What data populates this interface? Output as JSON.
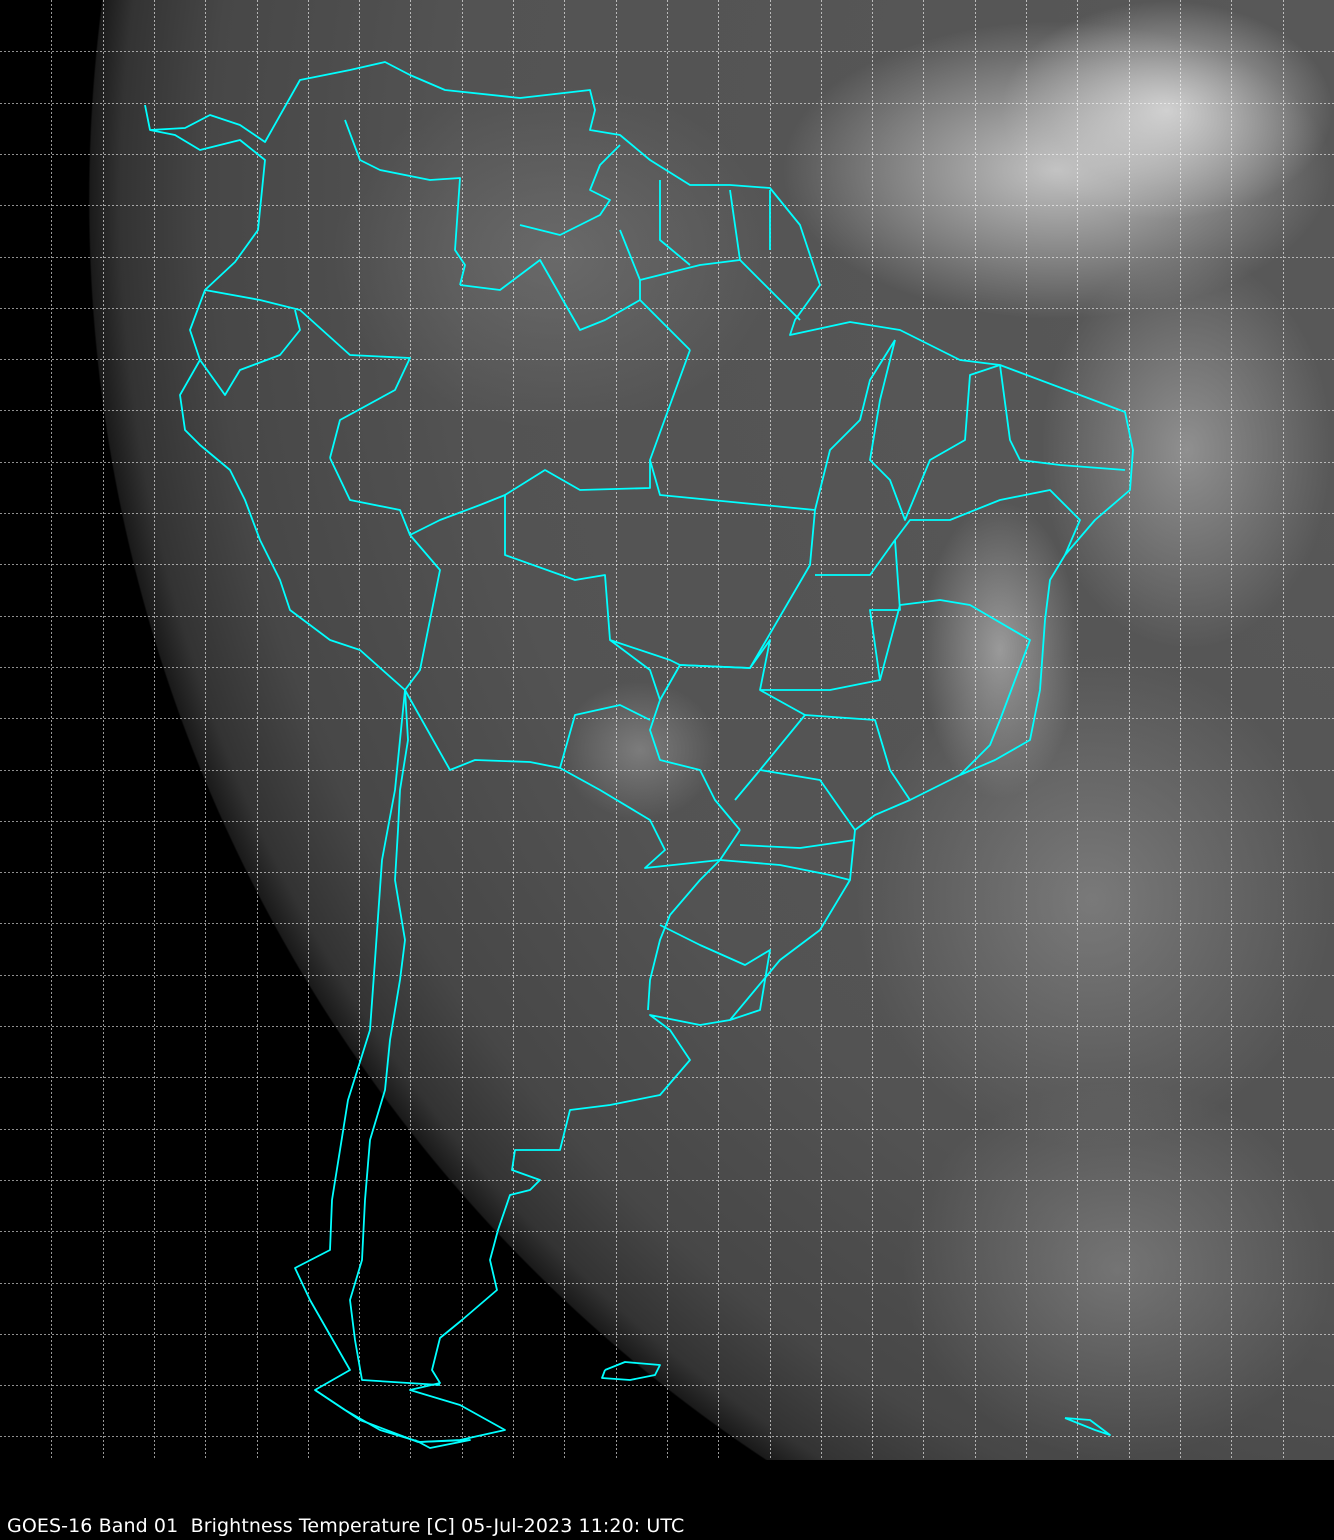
{
  "caption": "GOES-16 Band 01  Brightness Temperature [C] 05-Jul-2023 11:20: UTC",
  "colors": {
    "borders": "#00ffff",
    "grid": "#ffffff",
    "background": "#000000"
  },
  "map": {
    "region": "South America",
    "overlays": [
      "country-borders",
      "state-borders",
      "lat-lon-grid"
    ]
  }
}
